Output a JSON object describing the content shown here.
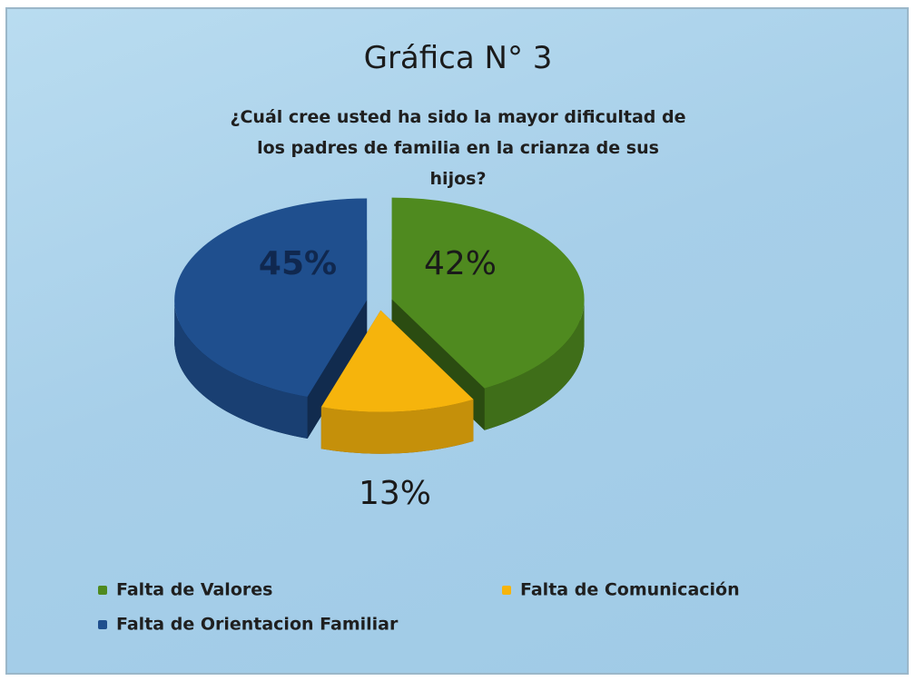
{
  "chart_data": {
    "type": "pie",
    "title": "Gráfica N° 3",
    "subtitle": "¿Cuál cree usted ha sido la mayor dificultad de los padres de familia en la crianza de sus hijos?",
    "categories": [
      "Falta de Valores",
      "Falta de Comunicación",
      "Falta de Orientacion Familiar"
    ],
    "values": [
      42,
      13,
      45
    ],
    "value_labels": [
      "42%",
      "13%",
      "45%"
    ],
    "colors": [
      "#4f8a1f",
      "#f6b40c",
      "#1f4f8e"
    ],
    "legend": "bottom"
  }
}
